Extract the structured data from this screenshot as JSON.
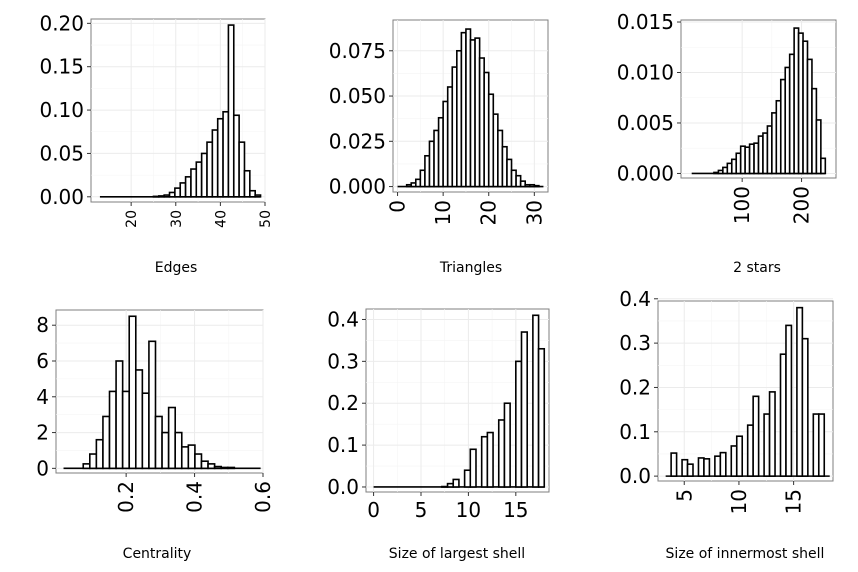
{
  "chart_data": [
    {
      "type": "bar",
      "xlabel": "Edges",
      "xlim": [
        11,
        50
      ],
      "ylim": [
        -0.006,
        0.205
      ],
      "x_ticks": [
        20,
        30,
        40,
        50
      ],
      "x_tick_labels": [
        "20",
        "30",
        "40",
        "50"
      ],
      "y_ticks": [
        0,
        0.05,
        0.1,
        0.15,
        0.2
      ],
      "y_tick_labels": [
        "0.00",
        "0.05",
        "0.10",
        "0.15",
        "0.20"
      ],
      "bin_width": 1.2,
      "bin_starts": [
        13,
        14.2,
        15.4,
        16.6,
        17.8,
        19,
        20.2,
        21.4,
        22.6,
        23.8,
        25,
        26.2,
        27.4,
        28.6,
        29.8,
        31,
        32.2,
        33.4,
        34.6,
        35.8,
        37,
        38.2,
        39.4,
        40.6,
        41.8,
        43,
        44.2,
        45.4,
        46.6,
        47.8
      ],
      "values": [
        0,
        0,
        0,
        0,
        0,
        0,
        0,
        0,
        0,
        0,
        0.0005,
        0.001,
        0.002,
        0.005,
        0.01,
        0.016,
        0.023,
        0.032,
        0.04,
        0.05,
        0.063,
        0.077,
        0.09,
        0.098,
        0.198,
        0.094,
        0.063,
        0.03,
        0.007,
        0.002
      ]
    },
    {
      "type": "bar",
      "xlabel": "Triangles",
      "xlim": [
        -1,
        33
      ],
      "ylim": [
        -0.003,
        0.092
      ],
      "x_ticks": [
        0,
        10,
        20,
        30
      ],
      "x_tick_labels": [
        "0",
        "10",
        "20",
        "30"
      ],
      "y_ticks": [
        0,
        0.025,
        0.05,
        0.075
      ],
      "y_tick_labels": [
        "0.000",
        "0.025",
        "0.050",
        "0.075"
      ],
      "bin_width": 1,
      "bin_starts": [
        0,
        1,
        2,
        3,
        4,
        5,
        6,
        7,
        8,
        9,
        10,
        11,
        12,
        13,
        14,
        15,
        16,
        17,
        18,
        19,
        20,
        21,
        22,
        23,
        24,
        25,
        26,
        27,
        28,
        29,
        30,
        31
      ],
      "values": [
        0,
        0,
        0.001,
        0.002,
        0.004,
        0.009,
        0.017,
        0.025,
        0.031,
        0.038,
        0.047,
        0.055,
        0.066,
        0.075,
        0.085,
        0.087,
        0.081,
        0.082,
        0.071,
        0.063,
        0.051,
        0.04,
        0.031,
        0.022,
        0.015,
        0.009,
        0.006,
        0.003,
        0.001,
        0.001,
        0.0005,
        0
      ]
    },
    {
      "type": "bar",
      "xlabel": "2 stars",
      "xlim": [
        -3,
        258
      ],
      "ylim": [
        -0.00045,
        0.0152
      ],
      "x_ticks": [
        100,
        200
      ],
      "x_tick_labels": [
        "100",
        "200"
      ],
      "y_ticks": [
        0,
        0.005,
        0.01,
        0.015
      ],
      "y_tick_labels": [
        "0.000",
        "0.005",
        "0.010",
        "0.015"
      ],
      "bin_width": 7.5,
      "bin_starts": [
        15,
        22.5,
        30,
        37.5,
        45,
        52.5,
        60,
        67.5,
        75,
        82.5,
        90,
        97.5,
        105,
        112.5,
        120,
        127.5,
        135,
        142.5,
        150,
        157.5,
        165,
        172.5,
        180,
        187.5,
        195,
        202.5,
        210,
        217.5,
        225,
        232.5
      ],
      "values": [
        0,
        0,
        0,
        0,
        0,
        0.0001,
        0.0003,
        0.0006,
        0.001,
        0.0014,
        0.002,
        0.0027,
        0.0026,
        0.0029,
        0.003,
        0.0037,
        0.004,
        0.0047,
        0.006,
        0.0072,
        0.0093,
        0.0105,
        0.0118,
        0.0144,
        0.0139,
        0.0131,
        0.0113,
        0.0084,
        0.0053,
        0.0015
      ]
    },
    {
      "type": "bar",
      "xlabel": "Centrality",
      "xlim": [
        -0.005,
        0.6
      ],
      "ylim": [
        -0.26,
        8.85
      ],
      "x_ticks": [
        0.2,
        0.4,
        0.6
      ],
      "x_tick_labels": [
        "0.2",
        "0.4",
        "0.6"
      ],
      "y_ticks": [
        0,
        2,
        4,
        6,
        8
      ],
      "y_tick_labels": [
        "0",
        "2",
        "4",
        "6",
        "8"
      ],
      "bin_width": 0.0192,
      "bin_starts": [
        0.017,
        0.0362,
        0.0554,
        0.0746,
        0.0938,
        0.113,
        0.1322,
        0.1514,
        0.1706,
        0.1898,
        0.209,
        0.2282,
        0.2474,
        0.2666,
        0.2858,
        0.305,
        0.3242,
        0.3434,
        0.3626,
        0.3818,
        0.401,
        0.4202,
        0.4394,
        0.4586,
        0.4778,
        0.497,
        0.5162,
        0.5354,
        0.5546,
        0.5738
      ],
      "values": [
        0,
        0,
        0,
        0.25,
        0.8,
        1.6,
        2.9,
        4.3,
        6.0,
        4.3,
        8.5,
        5.5,
        4.2,
        7.1,
        2.9,
        2.0,
        3.4,
        2.0,
        1.2,
        1.3,
        0.8,
        0.4,
        0.25,
        0.1,
        0.05,
        0.05,
        0,
        0,
        0,
        0
      ]
    },
    {
      "type": "bar",
      "xlabel": "Size of largest shell",
      "xlim": [
        -0.8,
        18.5
      ],
      "ylim": [
        -0.012,
        0.425
      ],
      "x_ticks": [
        0,
        5,
        10,
        15
      ],
      "x_tick_labels": [
        "0",
        "5",
        "10",
        "15"
      ],
      "y_ticks": [
        0,
        0.1,
        0.2,
        0.3,
        0.4
      ],
      "y_tick_labels": [
        "0.0",
        "0.1",
        "0.2",
        "0.3",
        "0.4"
      ],
      "bin_width": 0.6,
      "bin_starts": [
        0,
        0.6,
        1.2,
        1.8,
        2.4,
        3.0,
        3.6,
        4.2,
        4.8,
        5.4,
        6.0,
        6.6,
        7.2,
        7.8,
        8.4,
        9.0,
        9.6,
        10.2,
        10.8,
        11.4,
        12.0,
        12.6,
        13.2,
        13.8,
        14.4,
        15.0,
        15.6,
        16.2,
        16.8,
        17.4
      ],
      "values": [
        0,
        0,
        0,
        0,
        0,
        0,
        0,
        0,
        0,
        0,
        0,
        0,
        0.001,
        0.008,
        0.018,
        0,
        0.04,
        0.09,
        0,
        0.12,
        0.13,
        0,
        0.16,
        0.2,
        0,
        0.3,
        0.37,
        0,
        0.41,
        0.33
      ]
    },
    {
      "type": "bar",
      "xlabel": "Size of innermost shell",
      "xlim": [
        2.6,
        18.6
      ],
      "ylim": [
        -0.011,
        0.395
      ],
      "x_ticks": [
        5,
        10,
        15
      ],
      "x_tick_labels": [
        "5",
        "10",
        "15"
      ],
      "y_ticks": [
        0,
        0.1,
        0.2,
        0.3,
        0.4
      ],
      "y_tick_labels": [
        "0.0",
        "0.1",
        "0.2",
        "0.3",
        "0.4"
      ],
      "bin_width": 0.5,
      "bin_starts": [
        3.3,
        3.8,
        4.3,
        4.8,
        5.3,
        5.8,
        6.3,
        6.8,
        7.3,
        7.8,
        8.3,
        8.8,
        9.3,
        9.8,
        10.3,
        10.8,
        11.3,
        11.8,
        12.3,
        12.8,
        13.3,
        13.8,
        14.3,
        14.8,
        15.3,
        15.8,
        16.3,
        16.8,
        17.3,
        17.8
      ],
      "values": [
        0,
        0.052,
        0,
        0.037,
        0.027,
        0,
        0.041,
        0.039,
        0,
        0.045,
        0.053,
        0,
        0.068,
        0.09,
        0,
        0.115,
        0.18,
        0,
        0.14,
        0.19,
        0,
        0.275,
        0.34,
        0,
        0.38,
        0.31,
        0,
        0.14,
        0.14,
        0
      ]
    }
  ]
}
